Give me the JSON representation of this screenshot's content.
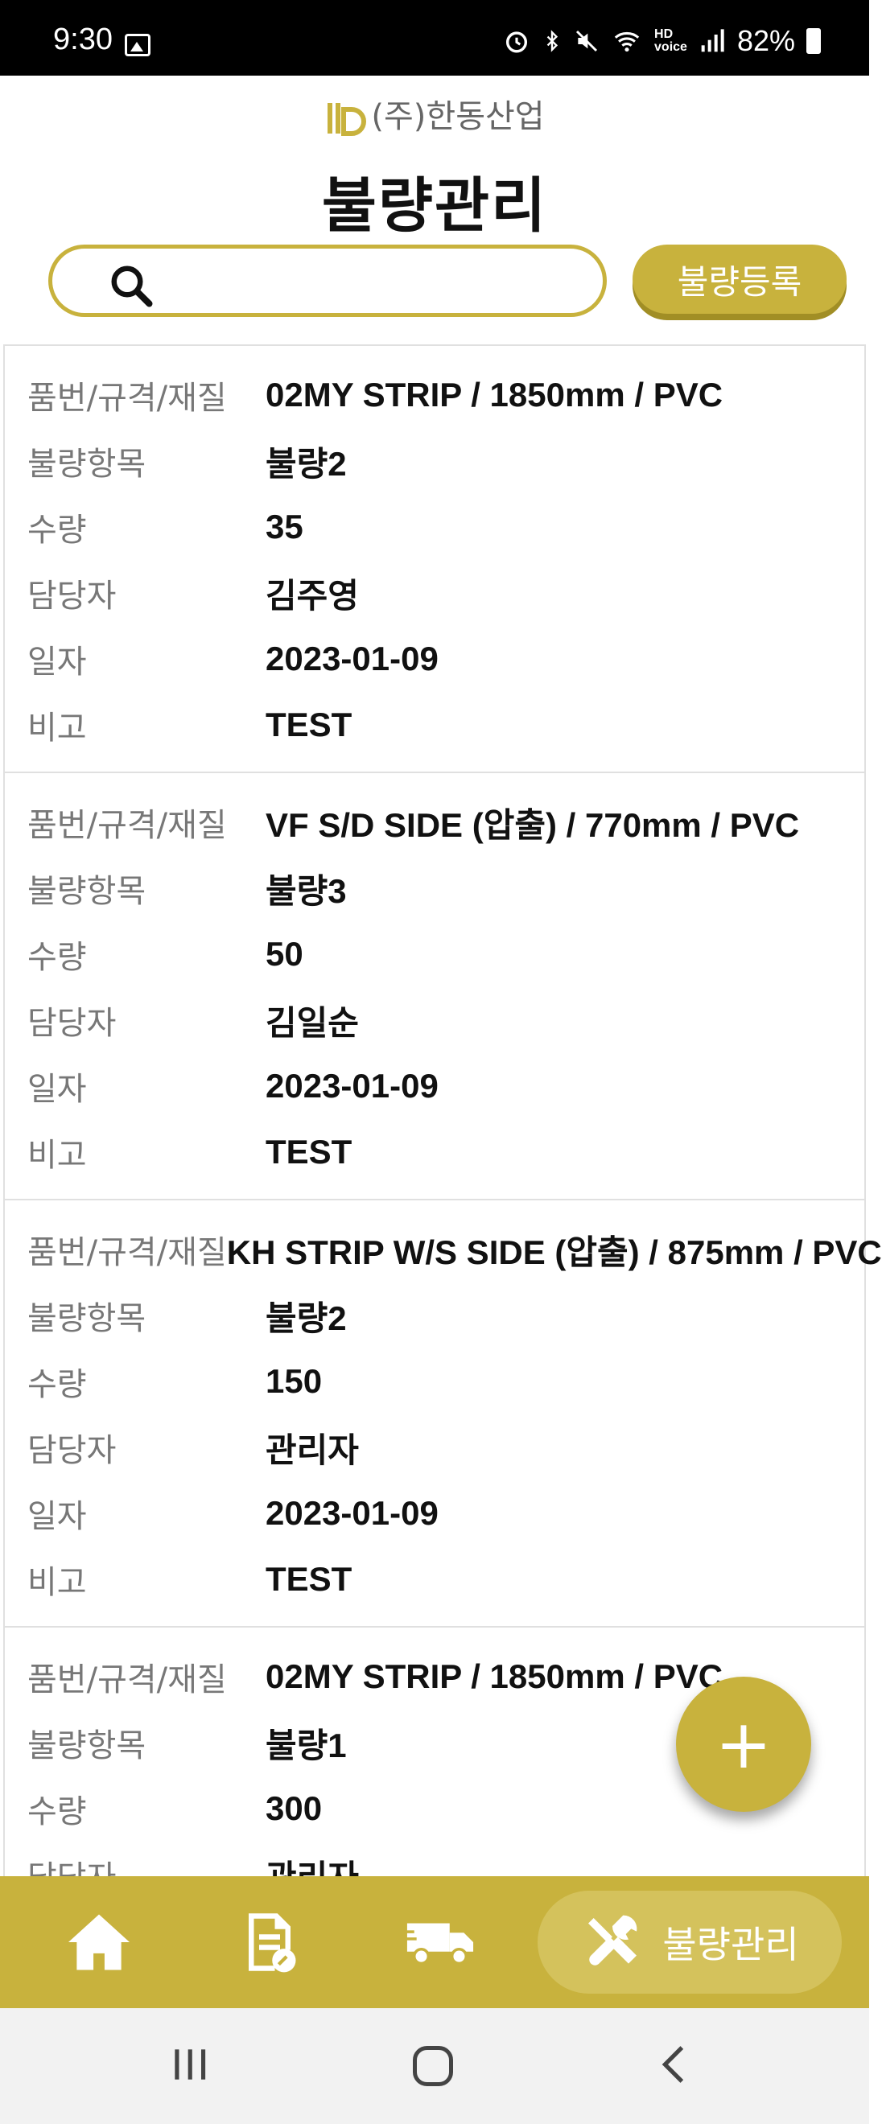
{
  "status_bar": {
    "time": "9:30",
    "battery": "82%"
  },
  "header": {
    "brand": "(주)한동산업",
    "title": "불량관리"
  },
  "search": {
    "placeholder": "",
    "value": ""
  },
  "register_button": "불량등록",
  "labels": {
    "item": "품번/규격/재질",
    "defect": "불량항목",
    "qty": "수량",
    "manager": "담당자",
    "date": "일자",
    "note": "비고"
  },
  "records": [
    {
      "item": "02MY STRIP / 1850mm / PVC",
      "defect": "불량2",
      "qty": "35",
      "manager": "김주영",
      "date": "2023-01-09",
      "note": "TEST"
    },
    {
      "item": "VF S/D SIDE (압출) / 770mm / PVC",
      "defect": "불량3",
      "qty": "50",
      "manager": "김일순",
      "date": "2023-01-09",
      "note": "TEST"
    },
    {
      "item": "KH STRIP W/S SIDE (압출) / 875mm / PVC",
      "defect": "불량2",
      "qty": "150",
      "manager": "관리자",
      "date": "2023-01-09",
      "note": "TEST"
    },
    {
      "item": "02MY STRIP / 1850mm / PVC",
      "defect": "불량1",
      "qty": "300",
      "manager": "관리자",
      "date": "",
      "note": ""
    }
  ],
  "fab": "+",
  "bottom_nav": {
    "active_label": "불량관리",
    "icons": [
      "home-icon",
      "document-edit-icon",
      "truck-icon",
      "tools-icon"
    ]
  },
  "colors": {
    "accent": "#c8b23d",
    "accent_dark": "#a18e25"
  }
}
